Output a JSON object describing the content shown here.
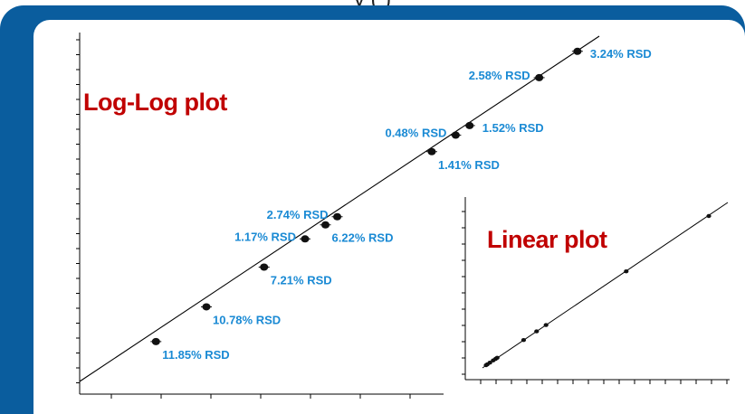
{
  "header": {
    "partial_text": "y                                    (   )"
  },
  "colors": {
    "frame": "#0a5d9e",
    "title": "#c00000",
    "label": "#1a8ad4",
    "marker": "#111111"
  },
  "chart_data": [
    {
      "type": "scatter",
      "title": "Log-Log plot",
      "xlabel": "",
      "ylabel": "",
      "scale": "log-log",
      "grid": false,
      "trendline": "linear fit",
      "points": [
        {
          "x": 0.6,
          "y": 0.6,
          "label": "11.85% RSD"
        },
        {
          "x": 1.1,
          "y": 1.1,
          "label": "10.78% RSD"
        },
        {
          "x": 2.2,
          "y": 2.2,
          "label": "7.21% RSD"
        },
        {
          "x": 3.6,
          "y": 3.6,
          "label": "1.17% RSD"
        },
        {
          "x": 4.6,
          "y": 4.6,
          "label": "6.22% RSD"
        },
        {
          "x": 5.3,
          "y": 5.3,
          "label": "2.74% RSD"
        },
        {
          "x": 16.5,
          "y": 16.5,
          "label": "1.41% RSD"
        },
        {
          "x": 22,
          "y": 22,
          "label": "0.48% RSD"
        },
        {
          "x": 26,
          "y": 26,
          "label": "1.52% RSD"
        },
        {
          "x": 60,
          "y": 60,
          "label": "2.58% RSD"
        },
        {
          "x": 95,
          "y": 95,
          "label": "3.24% RSD"
        }
      ]
    },
    {
      "type": "scatter",
      "title": "Linear plot",
      "xlabel": "",
      "ylabel": "",
      "scale": "linear",
      "grid": false,
      "trendline": "linear fit",
      "points": [
        {
          "x": 0.6,
          "y": 0.6
        },
        {
          "x": 1.1,
          "y": 1.1
        },
        {
          "x": 2.2,
          "y": 2.2
        },
        {
          "x": 3.6,
          "y": 3.6
        },
        {
          "x": 4.6,
          "y": 4.6
        },
        {
          "x": 5.3,
          "y": 5.3
        },
        {
          "x": 16.5,
          "y": 16.5
        },
        {
          "x": 22,
          "y": 22
        },
        {
          "x": 26,
          "y": 26
        },
        {
          "x": 60,
          "y": 60
        },
        {
          "x": 95,
          "y": 95
        }
      ]
    }
  ]
}
